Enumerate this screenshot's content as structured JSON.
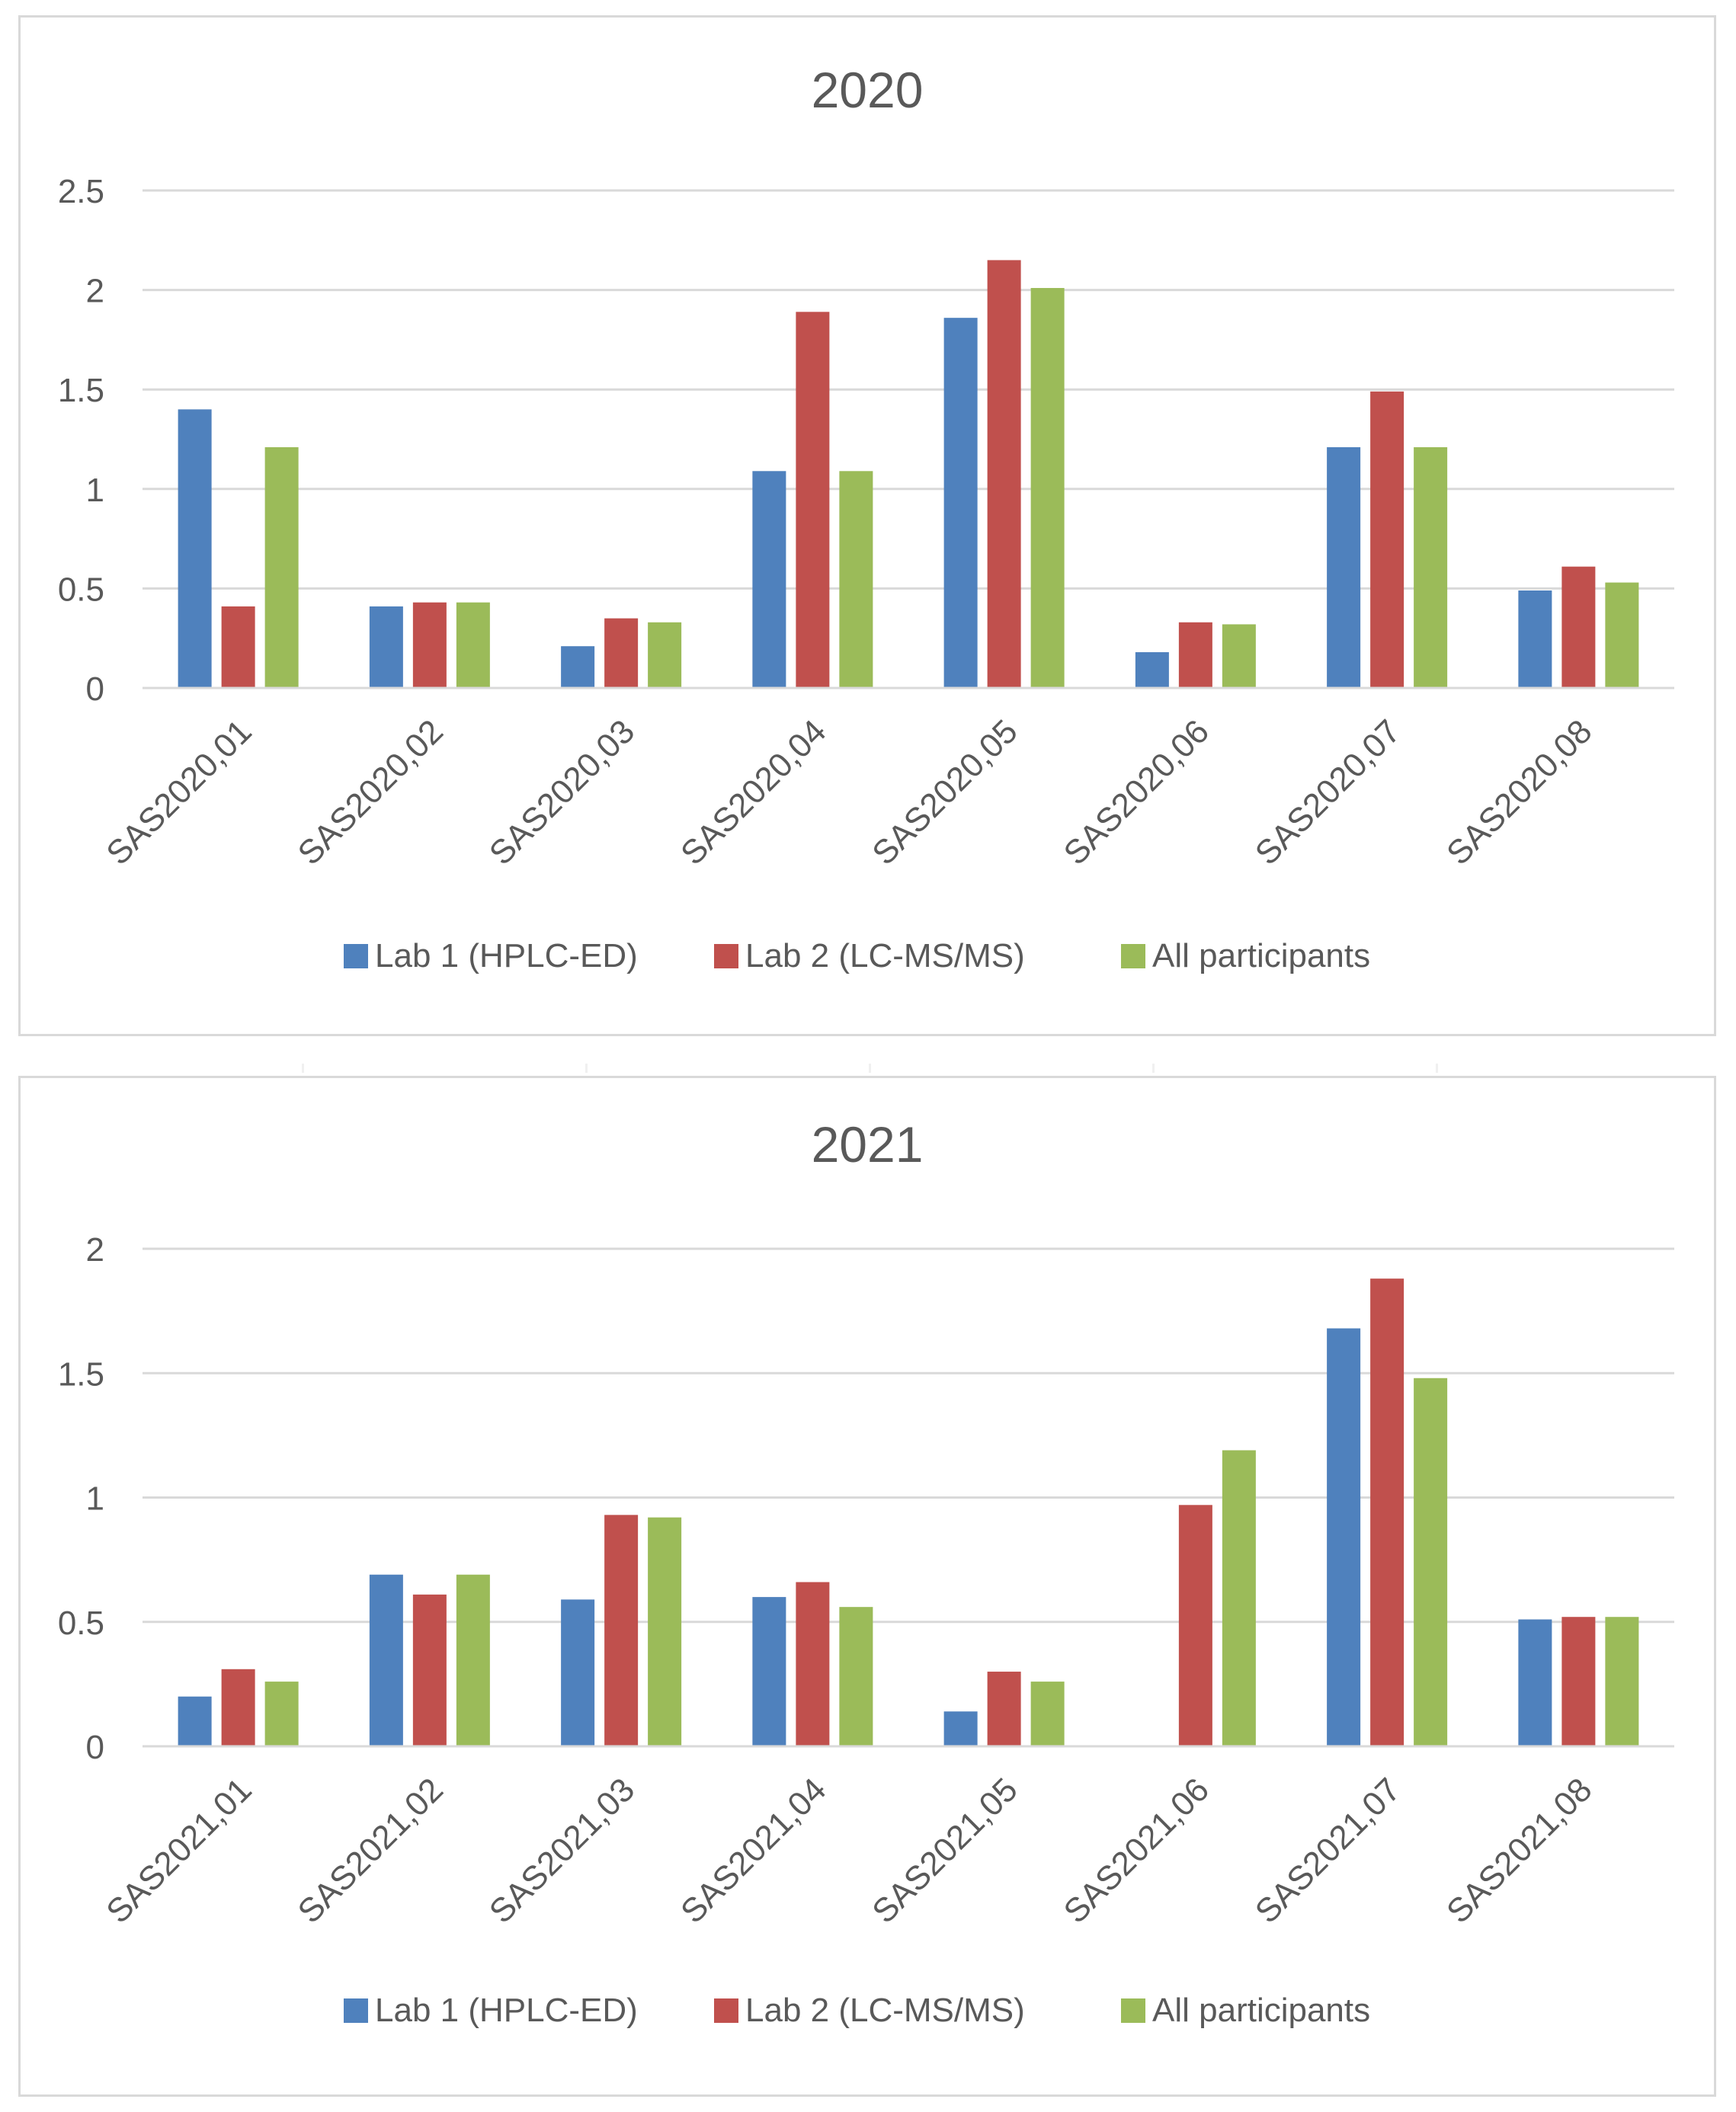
{
  "colors": {
    "lab1": "#4f81bd",
    "lab2": "#c0504d",
    "all": "#9bbb59",
    "grid": "#d9d9d9",
    "text": "#595959",
    "title": "#595959"
  },
  "chart_data": [
    {
      "type": "bar",
      "title": "2020",
      "categories": [
        "SAS2020,01",
        "SAS2020,02",
        "SAS2020,03",
        "SAS2020,04",
        "SAS2020,05",
        "SAS2020,06",
        "SAS2020,07",
        "SAS2020,08"
      ],
      "series": [
        {
          "name": "Lab 1 (HPLC-ED)",
          "values": [
            1.4,
            0.41,
            0.21,
            1.09,
            1.86,
            0.18,
            1.21,
            0.49
          ]
        },
        {
          "name": "Lab 2 (LC-MS/MS)",
          "values": [
            0.41,
            0.43,
            0.35,
            1.89,
            2.15,
            0.33,
            1.49,
            0.61
          ]
        },
        {
          "name": "All participants",
          "values": [
            1.21,
            0.43,
            0.33,
            1.09,
            2.01,
            0.32,
            1.21,
            0.53
          ]
        }
      ],
      "yticks": [
        "0",
        "0.5",
        "1",
        "1.5",
        "2",
        "2.5"
      ],
      "ylim": [
        0,
        2.5
      ],
      "xlabel": "",
      "ylabel": "",
      "grid": true,
      "legend": "bottom"
    },
    {
      "type": "bar",
      "title": "2021",
      "categories": [
        "SAS2021,01",
        "SAS2021,02",
        "SAS2021,03",
        "SAS2021,04",
        "SAS2021,05",
        "SAS2021,06",
        "SAS2021,07",
        "SAS2021,08"
      ],
      "series": [
        {
          "name": "Lab 1 (HPLC-ED)",
          "values": [
            0.2,
            0.69,
            0.59,
            0.6,
            0.14,
            0,
            1.68,
            0.51
          ]
        },
        {
          "name": "Lab 2 (LC-MS/MS)",
          "values": [
            0.31,
            0.61,
            0.93,
            0.66,
            0.3,
            0.97,
            1.88,
            0.52
          ]
        },
        {
          "name": "All participants",
          "values": [
            0.26,
            0.69,
            0.92,
            0.56,
            0.26,
            1.19,
            1.48,
            0.52
          ]
        }
      ],
      "yticks": [
        "0",
        "0.5",
        "1",
        "1.5",
        "2"
      ],
      "ylim": [
        0,
        2
      ],
      "xlabel": "",
      "ylabel": "",
      "grid": true,
      "legend": "bottom"
    }
  ]
}
